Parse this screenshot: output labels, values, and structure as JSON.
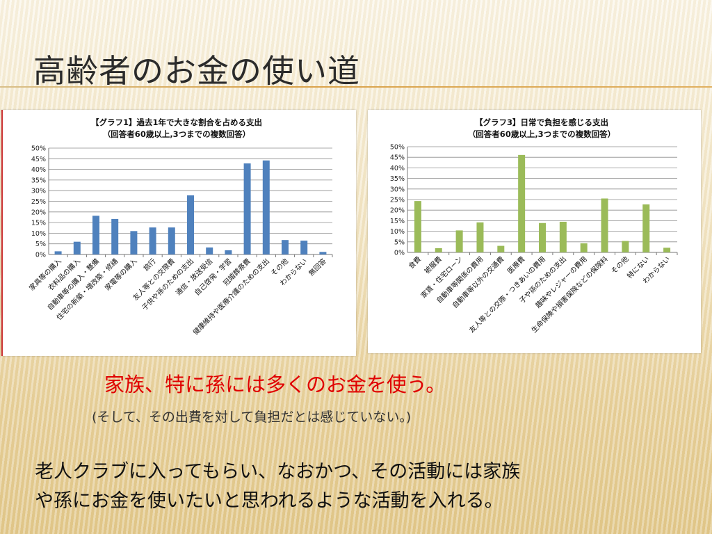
{
  "slide": {
    "title": "高齢者のお金の使い道",
    "message_red": "家族、特に孫には多くのお金を使う。",
    "message_sub": "(そして、その出費を対して負担だとは感じていない。)",
    "message_main_line1": "老人クラブに入ってもらい、なおかつ、その活動には家族",
    "message_main_line2": "や孫にお金を使いたいと思われるような活動を入れる。"
  },
  "chart_data": [
    {
      "type": "bar",
      "title": "【グラフ1】過去1年で大きな割合を占める支出",
      "subtitle": "（回答者60歳以上,3つまでの複数回答）",
      "ylim": [
        0,
        50
      ],
      "yticks": [
        "0%",
        "5%",
        "10%",
        "15%",
        "20%",
        "25%",
        "30%",
        "35%",
        "40%",
        "45%",
        "50%"
      ],
      "grid": true,
      "color": "#4f81bd",
      "categories": [
        "家具等の購入",
        "衣料品の購入",
        "自動車等の購入・整備",
        "住宅の新築・増改築・修繕",
        "家電等の購入",
        "旅行",
        "友人等との交際費",
        "子供や孫のための支出",
        "通信・放送受信",
        "自己啓発・学習",
        "冠婚葬祭費",
        "健康維持や医療介護のための支出",
        "その他",
        "わからない",
        "無回答"
      ],
      "values": [
        1.5,
        6,
        18.2,
        16.7,
        11,
        12.7,
        12.7,
        27.8,
        3.3,
        2,
        42.8,
        44.2,
        6.8,
        6.5,
        1.2
      ]
    },
    {
      "type": "bar",
      "title": "【グラフ3】日常で負担を感じる支出",
      "subtitle": "（回答者60歳以上,3つまでの複数回答）",
      "ylim": [
        0,
        50
      ],
      "yticks": [
        "0%",
        "5%",
        "10%",
        "15%",
        "20%",
        "25%",
        "30%",
        "35%",
        "40%",
        "45%",
        "50%"
      ],
      "grid": true,
      "color": "#9bbb59",
      "categories": [
        "食費",
        "被服費",
        "家賃・住宅ローン",
        "自動車等関係の費用",
        "自動車等以外の交通費",
        "医療費",
        "友人等との交際・つきあいの費用",
        "子や孫のための支出",
        "趣味やレジャーの費用",
        "生命保険や損害保険などの保険料",
        "その他",
        "特にない",
        "わからない"
      ],
      "values": [
        24.3,
        2,
        10.4,
        14.2,
        3.1,
        46.1,
        13.9,
        14.5,
        4.3,
        25.5,
        5.4,
        22.7,
        2.2
      ]
    }
  ]
}
